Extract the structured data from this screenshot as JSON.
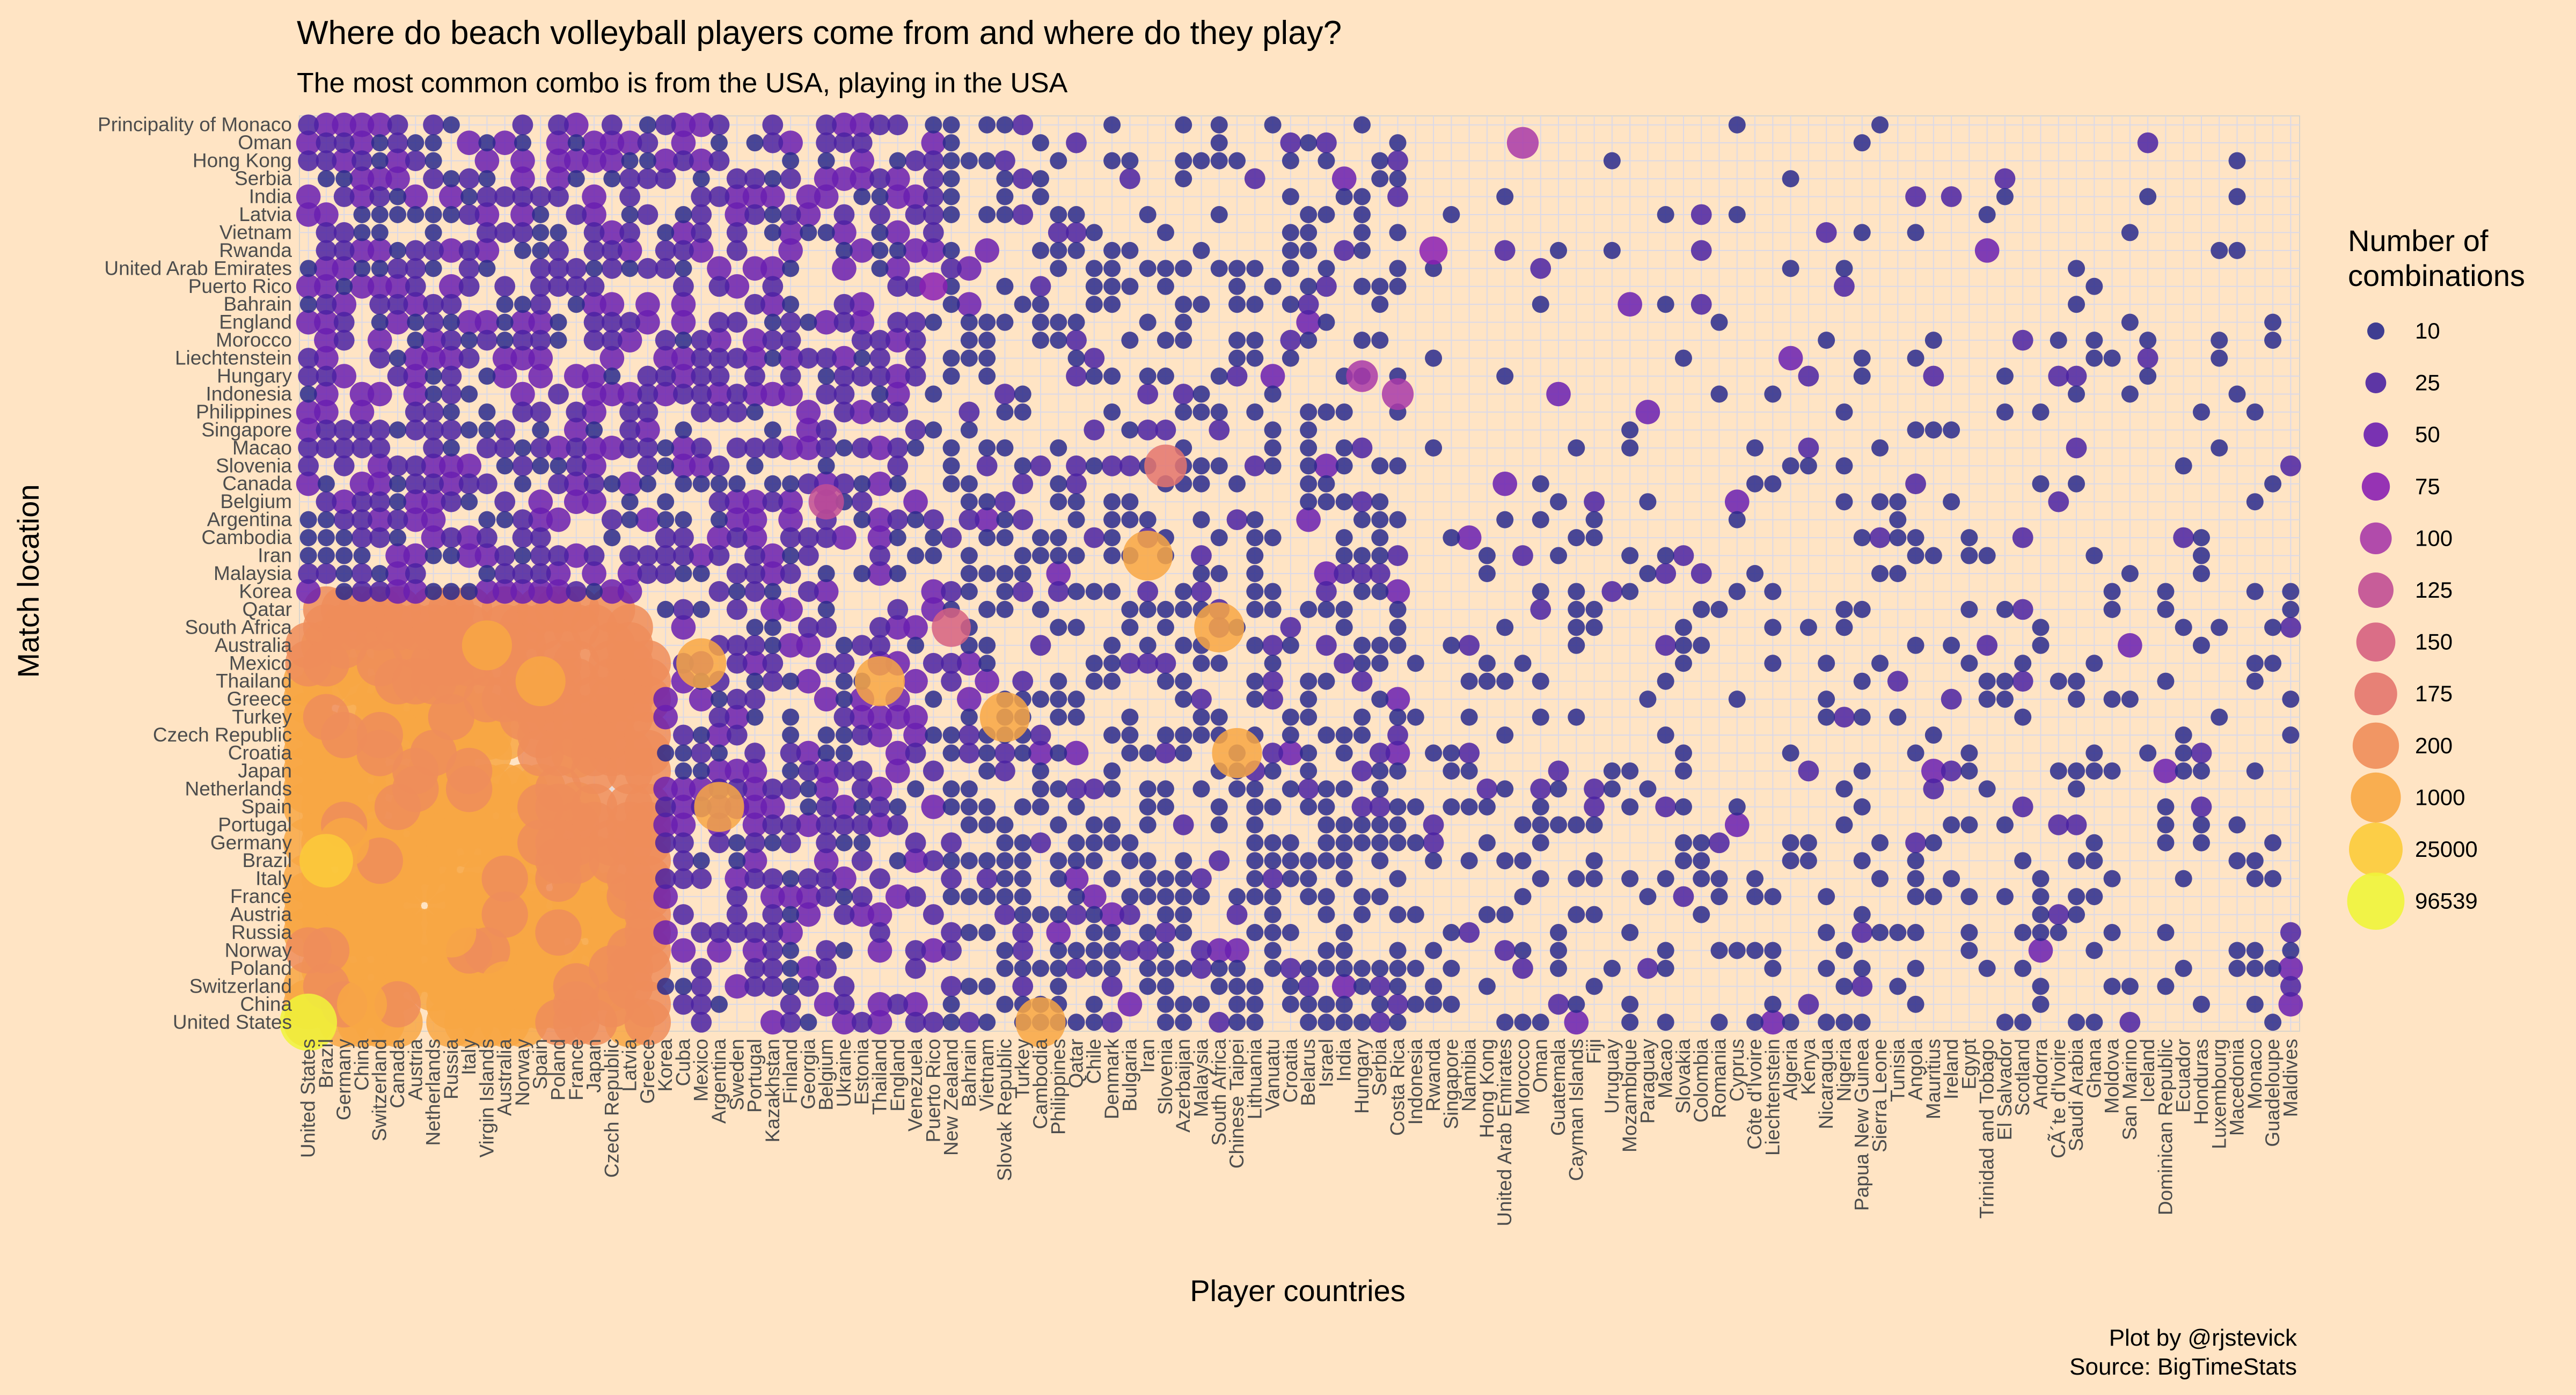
{
  "chart_data": {
    "type": "scatter",
    "title": "Where do beach volleyball players come from and where do they play?",
    "subtitle": "The most common combo is from the USA, playing in the USA",
    "xlabel": "Player countries",
    "ylabel": "Match location",
    "caption": [
      "Plot by @rjstevick",
      "Source: BigTimeStats"
    ],
    "x_categories": [
      "United States",
      "Brazil",
      "Germany",
      "China",
      "Switzerland",
      "Canada",
      "Austria",
      "Netherlands",
      "Russia",
      "Italy",
      "Virgin Islands",
      "Australia",
      "Norway",
      "Spain",
      "Poland",
      "France",
      "Japan",
      "Czech Republic",
      "Latvia",
      "Greece",
      "Korea",
      "Cuba",
      "Mexico",
      "Argentina",
      "Sweden",
      "Portugal",
      "Kazakhstan",
      "Finland",
      "Georgia",
      "Belgium",
      "Ukraine",
      "Estonia",
      "Thailand",
      "England",
      "Venezuela",
      "Puerto Rico",
      "New Zealand",
      "Bahrain",
      "Vietnam",
      "Slovak Republic",
      "Turkey",
      "Cambodia",
      "Philippines",
      "Qatar",
      "Chile",
      "Denmark",
      "Bulgaria",
      "Iran",
      "Slovenia",
      "Azerbaijan",
      "Malaysia",
      "South Africa",
      "Chinese Taipei",
      "Lithuania",
      "Vanuatu",
      "Croatia",
      "Belarus",
      "Israel",
      "India",
      "Hungary",
      "Serbia",
      "Costa Rica",
      "Indonesia",
      "Rwanda",
      "Singapore",
      "Namibia",
      "Hong Kong",
      "United Arab Emirates",
      "Morocco",
      "Oman",
      "Guatemala",
      "Cayman Islands",
      "Fiji",
      "Uruguay",
      "Mozambique",
      "Paraguay",
      "Macao",
      "Slovakia",
      "Colombia",
      "Romania",
      "Cyprus",
      "Côte d'Ivoire",
      "Liechtenstein",
      "Algeria",
      "Kenya",
      "Nicaragua",
      "Nigeria",
      "Papua New Guinea",
      "Sierra Leone",
      "Tunisia",
      "Angola",
      "Mauritius",
      "Ireland",
      "Egypt",
      "Trinidad and Tobago",
      "El Salvador",
      "Scotland",
      "Andorra",
      "CÃ´te d'Ivoire",
      "Saudi Arabia",
      "Ghana",
      "Moldova",
      "San Marino",
      "Iceland",
      "Dominican Republic",
      "Ecuador",
      "Honduras",
      "Luxembourg",
      "Macedonia",
      "Monaco",
      "Guadeloupe",
      "Maldives"
    ],
    "y_categories": [
      "Principality of Monaco",
      "Oman",
      "Hong Kong",
      "Serbia",
      "India",
      "Latvia",
      "Vietnam",
      "Rwanda",
      "United Arab Emirates",
      "Puerto Rico",
      "Bahrain",
      "England",
      "Morocco",
      "Liechtenstein",
      "Hungary",
      "Indonesia",
      "Philippines",
      "Singapore",
      "Macao",
      "Slovenia",
      "Canada",
      "Belgium",
      "Argentina",
      "Cambodia",
      "Iran",
      "Malaysia",
      "Korea",
      "Qatar",
      "South Africa",
      "Australia",
      "Mexico",
      "Thailand",
      "Greece",
      "Turkey",
      "Czech Republic",
      "Croatia",
      "Japan",
      "Netherlands",
      "Spain",
      "Portugal",
      "Germany",
      "Brazil",
      "Italy",
      "France",
      "Austria",
      "Russia",
      "Norway",
      "Poland",
      "Switzerland",
      "China",
      "United States"
    ],
    "size_legend": {
      "title": [
        "Number of",
        "combinations"
      ],
      "breaks": [
        10,
        25,
        50,
        75,
        100,
        125,
        150,
        175,
        200,
        1000,
        25000,
        96539
      ],
      "colors": [
        "#2A2A8C",
        "#4B22A2",
        "#6A1EB0",
        "#8B1FB3",
        "#A93AA8",
        "#C14E95",
        "#D66181",
        "#E4766E",
        "#EF8D5A",
        "#F8A744",
        "#FCCB3A",
        "#F0F43A"
      ]
    },
    "points": [
      {
        "x": "United States",
        "y": "United States",
        "value": 96539
      },
      {
        "x": "Brazil",
        "y": "Brazil",
        "value": 25000
      },
      {
        "x": "Germany",
        "y": "Germany",
        "value": 20000
      },
      {
        "x": "China",
        "y": "China",
        "value": 18000
      },
      {
        "x": "Russia",
        "y": "Russia",
        "value": 5000
      },
      {
        "x": "Australia",
        "y": "Switzerland",
        "value": 4000
      },
      {
        "x": "Cambodia",
        "y": "United States",
        "value": 1000
      },
      {
        "x": "Iran",
        "y": "Iran",
        "value": 1000
      },
      {
        "x": "South Africa",
        "y": "South Africa",
        "value": 1000
      },
      {
        "x": "Chinese Taipei",
        "y": "Croatia",
        "value": 1000
      },
      {
        "x": "Slovak Republic",
        "y": "Turkey",
        "value": 1000
      },
      {
        "x": "Thailand",
        "y": "Thailand",
        "value": 1000
      },
      {
        "x": "Mexico",
        "y": "Mexico",
        "value": 1000
      },
      {
        "x": "Argentina",
        "y": "Spain",
        "value": 1000
      },
      {
        "x": "Spain",
        "y": "Thailand",
        "value": 1000
      },
      {
        "x": "Virgin Islands",
        "y": "Australia",
        "value": 1000
      },
      {
        "x": "Slovenia",
        "y": "Slovenia",
        "value": 175
      },
      {
        "x": "Morocco",
        "y": "Oman",
        "value": 100
      },
      {
        "x": "Costa Rica",
        "y": "Indonesia",
        "value": 100
      },
      {
        "x": "Hungary",
        "y": "Hungary",
        "value": 100
      },
      {
        "x": "Rwanda",
        "y": "Rwanda",
        "value": 75
      },
      {
        "x": "Belgium",
        "y": "Belgium",
        "value": 125
      },
      {
        "x": "Puerto Rico",
        "y": "Puerto Rico",
        "value": 75
      },
      {
        "x": "New Zealand",
        "y": "South Africa",
        "value": 150
      }
    ],
    "dense_fill": {
      "x_range": [
        "United States",
        "Puerto Rico"
      ],
      "y_range": [
        "Principality of Monaco",
        "United States"
      ],
      "note": "dense block of mostly low-count points (10-200) with high counts toward the bottom-left"
    }
  }
}
